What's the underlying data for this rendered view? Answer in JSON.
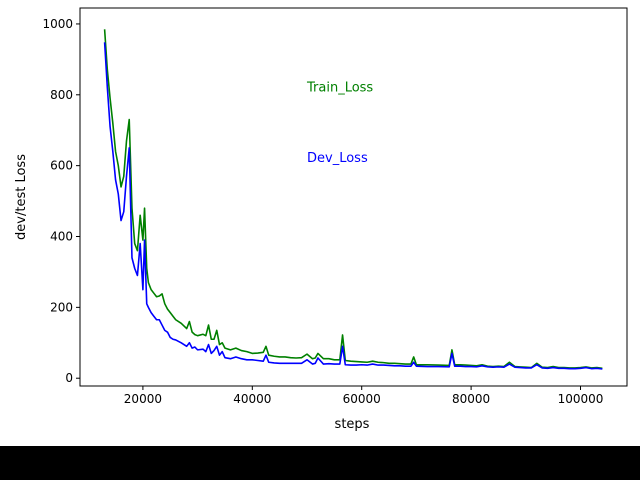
{
  "chart_data": {
    "type": "line",
    "xlabel": "steps",
    "ylabel": "dev/test Loss",
    "xlim": [
      8500,
      108500
    ],
    "ylim": [
      -22,
      1045
    ],
    "xticks": [
      20000,
      40000,
      60000,
      80000,
      100000
    ],
    "xtick_labels": [
      "20000",
      "40000",
      "60000",
      "80000",
      "100000"
    ],
    "yticks": [
      0,
      200,
      400,
      600,
      800,
      1000
    ],
    "ytick_labels": [
      "0",
      "200",
      "400",
      "600",
      "800",
      "1000"
    ],
    "grid": false,
    "annotations": [
      {
        "text": "Train_Loss",
        "x": 50000,
        "y": 810,
        "color": "#008000"
      },
      {
        "text": "Dev_Loss",
        "x": 50000,
        "y": 610,
        "color": "#0000ff"
      }
    ],
    "series": [
      {
        "color": "#008000",
        "x": [
          13000,
          13500,
          14000,
          14500,
          15000,
          15500,
          16000,
          16500,
          17000,
          17500,
          18000,
          18500,
          19000,
          19500,
          20000,
          20300,
          20700,
          21000,
          21500,
          22000,
          22500,
          23000,
          23500,
          24000,
          24500,
          25000,
          25500,
          26000,
          27000,
          28000,
          28500,
          29000,
          29500,
          30000,
          31000,
          31500,
          32000,
          32500,
          33000,
          33500,
          34000,
          34500,
          35000,
          36000,
          37000,
          38000,
          39000,
          40000,
          41000,
          42000,
          42500,
          43000,
          44000,
          45000,
          46000,
          47000,
          48000,
          49000,
          50000,
          51000,
          51500,
          52000,
          53000,
          54000,
          55000,
          56000,
          56500,
          57000,
          58000,
          59000,
          60000,
          61000,
          62000,
          63000,
          64000,
          65000,
          66000,
          67000,
          68000,
          69000,
          69500,
          70000,
          72000,
          74000,
          76000,
          76500,
          77000,
          78000,
          79000,
          80000,
          81000,
          82000,
          83000,
          84000,
          85000,
          86000,
          87000,
          88000,
          89000,
          90000,
          91000,
          92000,
          93000,
          94000,
          95000,
          96000,
          97000,
          98000,
          99000,
          100000,
          101000,
          102000,
          103000,
          104000
        ],
        "y": [
          985,
          870,
          790,
          720,
          640,
          600,
          540,
          570,
          670,
          730,
          480,
          380,
          360,
          460,
          390,
          480,
          310,
          270,
          250,
          240,
          230,
          232,
          238,
          210,
          195,
          185,
          175,
          165,
          155,
          140,
          160,
          130,
          123,
          120,
          124,
          120,
          150,
          110,
          110,
          135,
          95,
          100,
          85,
          80,
          85,
          78,
          75,
          70,
          71,
          73,
          90,
          65,
          62,
          60,
          60,
          58,
          57,
          58,
          68,
          55,
          57,
          70,
          55,
          55,
          52,
          52,
          122,
          50,
          48,
          47,
          46,
          45,
          48,
          45,
          44,
          42,
          42,
          41,
          40,
          40,
          60,
          38,
          38,
          37,
          36,
          80,
          38,
          38,
          37,
          36,
          35,
          38,
          34,
          33,
          34,
          33,
          45,
          33,
          32,
          31,
          30,
          42,
          31,
          30,
          33,
          30,
          30,
          29,
          29,
          30,
          32,
          29,
          30,
          28
        ]
      },
      {
        "color": "#0000ff",
        "x": [
          13000,
          13500,
          14000,
          14500,
          15000,
          15500,
          16000,
          16500,
          17000,
          17500,
          18000,
          18500,
          19000,
          19500,
          20000,
          20300,
          20700,
          21000,
          21500,
          22000,
          22500,
          23000,
          23500,
          24000,
          24500,
          25000,
          25500,
          26000,
          27000,
          28000,
          28500,
          29000,
          29500,
          30000,
          31000,
          31500,
          32000,
          32500,
          33000,
          33500,
          34000,
          34500,
          35000,
          36000,
          37000,
          38000,
          39000,
          40000,
          41000,
          42000,
          42500,
          43000,
          44000,
          45000,
          46000,
          47000,
          48000,
          49000,
          50000,
          51000,
          51500,
          52000,
          53000,
          54000,
          55000,
          56000,
          56500,
          57000,
          58000,
          59000,
          60000,
          61000,
          62000,
          63000,
          64000,
          65000,
          66000,
          67000,
          68000,
          69000,
          69500,
          70000,
          72000,
          74000,
          76000,
          76500,
          77000,
          78000,
          79000,
          80000,
          81000,
          82000,
          83000,
          84000,
          85000,
          86000,
          87000,
          88000,
          89000,
          90000,
          91000,
          92000,
          93000,
          94000,
          95000,
          96000,
          97000,
          98000,
          99000,
          100000,
          101000,
          102000,
          103000,
          104000
        ],
        "y": [
          948,
          820,
          710,
          640,
          560,
          520,
          445,
          470,
          570,
          650,
          340,
          310,
          290,
          380,
          250,
          390,
          210,
          200,
          185,
          175,
          165,
          165,
          150,
          135,
          130,
          115,
          110,
          108,
          100,
          90,
          100,
          85,
          88,
          80,
          82,
          75,
          95,
          70,
          78,
          90,
          65,
          75,
          58,
          55,
          60,
          55,
          52,
          52,
          50,
          48,
          65,
          45,
          43,
          42,
          42,
          42,
          42,
          42,
          52,
          40,
          42,
          57,
          40,
          41,
          40,
          40,
          90,
          38,
          37,
          37,
          38,
          37,
          40,
          37,
          37,
          36,
          35,
          35,
          34,
          34,
          45,
          34,
          33,
          33,
          32,
          70,
          34,
          34,
          33,
          33,
          32,
          35,
          32,
          31,
          32,
          31,
          40,
          31,
          30,
          29,
          29,
          38,
          29,
          28,
          30,
          28,
          28,
          27,
          27,
          28,
          30,
          27,
          28,
          26
        ]
      }
    ]
  }
}
